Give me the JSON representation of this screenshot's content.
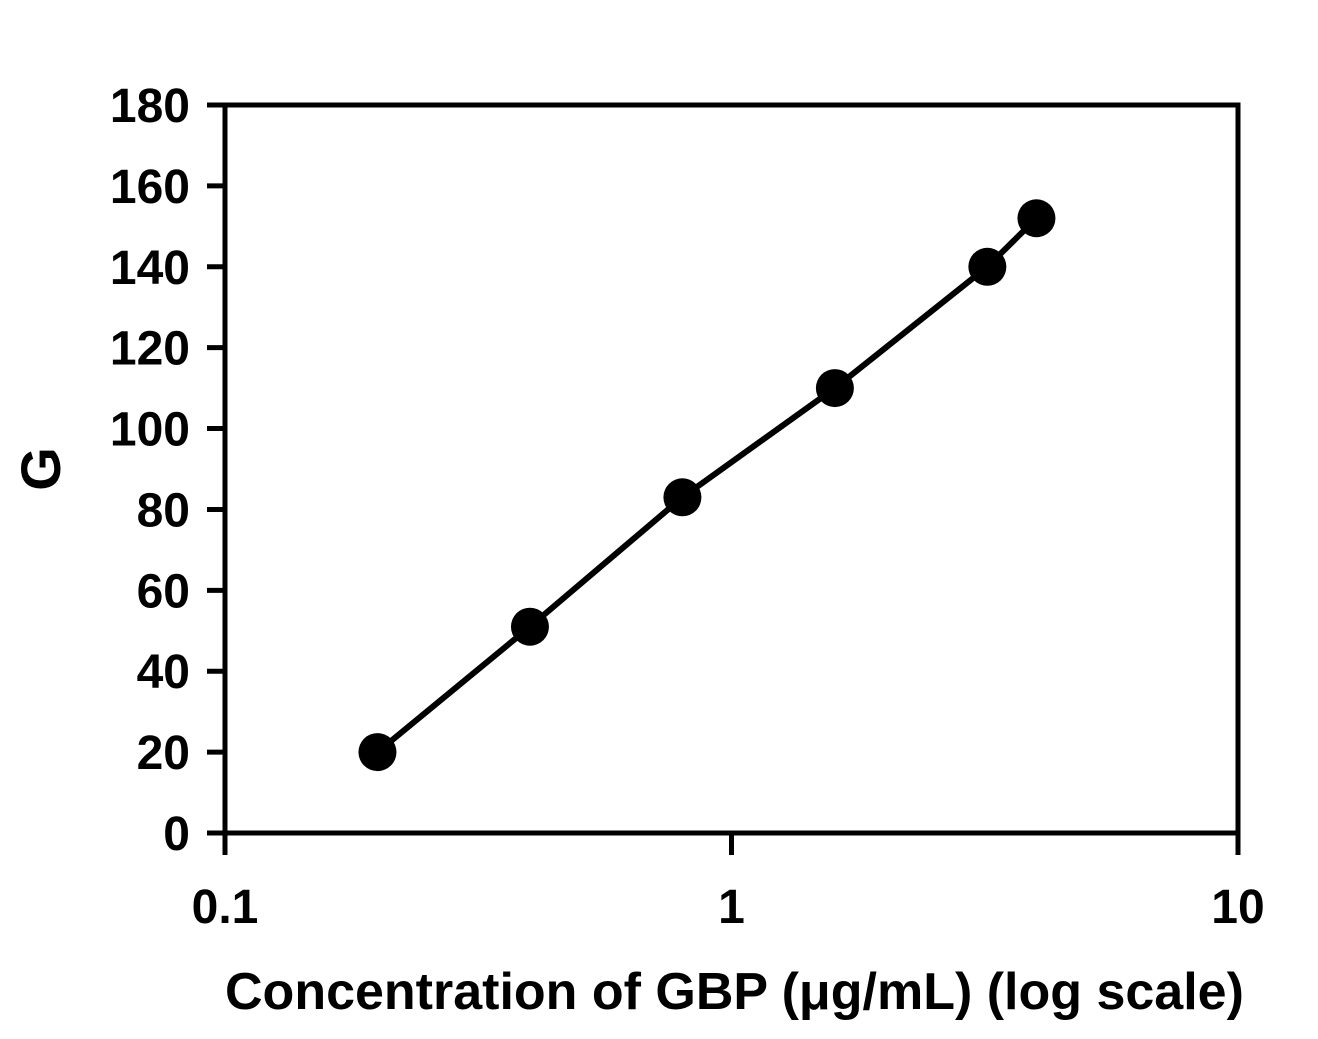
{
  "figure": {
    "background": "#ffffff",
    "ink_color": "#000000"
  },
  "chart_data": {
    "type": "scatter",
    "x": [
      0.2,
      0.4,
      0.8,
      1.6,
      3.2,
      4.0
    ],
    "y": [
      20,
      51,
      83,
      110,
      140,
      152
    ],
    "marker": "filled-circle",
    "line_between_points": true,
    "title": "",
    "xlabel": "Concentration of GBP (μg/mL) (log scale)",
    "ylabel": "G",
    "xscale": "log",
    "xlim": [
      0.1,
      10
    ],
    "ylim": [
      0,
      180
    ],
    "xticks": [
      0.1,
      1,
      10
    ],
    "xtick_labels": [
      "0.1",
      "1",
      "10"
    ],
    "yticks": [
      0,
      20,
      40,
      60,
      80,
      100,
      120,
      140,
      160,
      180
    ],
    "ytick_labels": [
      "0",
      "20",
      "40",
      "60",
      "80",
      "100",
      "120",
      "140",
      "160",
      "180"
    ],
    "grid": false,
    "legend": false
  }
}
